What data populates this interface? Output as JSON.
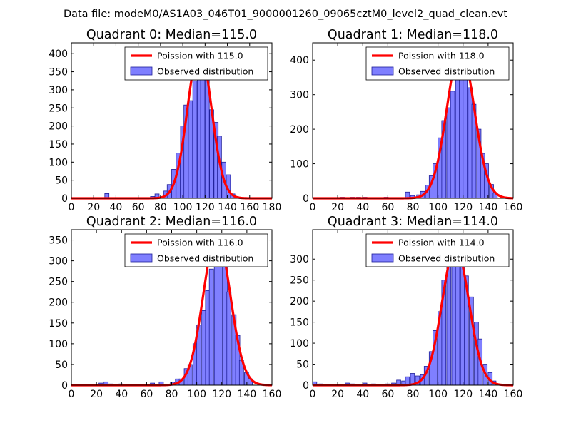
{
  "suptitle": "Data file: modeM0/AS1A03_046T01_9000001260_09065cztM0_level2_quad_clean.evt",
  "colors": {
    "bar_fill": "#7f7fff",
    "bar_edge": "#1f1f99",
    "fit_line": "#ff0000"
  },
  "chart_data": [
    {
      "type": "bar",
      "title": "Quadrant 0: Median=115.0",
      "xlim": [
        0,
        180
      ],
      "ylim": [
        0,
        430
      ],
      "xticks": [
        0,
        20,
        40,
        60,
        80,
        100,
        120,
        140,
        160,
        180
      ],
      "yticks": [
        0,
        50,
        100,
        150,
        200,
        250,
        300,
        350,
        400
      ],
      "legend": [
        "Poission with 115.0",
        "Observed distribution"
      ],
      "bin_width": 3.75,
      "hist": [
        [
          30,
          13
        ],
        [
          71,
          5
        ],
        [
          75,
          12
        ],
        [
          80,
          5
        ],
        [
          83,
          20
        ],
        [
          86,
          38
        ],
        [
          90,
          80
        ],
        [
          94,
          125
        ],
        [
          98,
          200
        ],
        [
          101,
          258
        ],
        [
          105,
          270
        ],
        [
          109,
          325
        ],
        [
          113,
          362
        ],
        [
          116,
          410
        ],
        [
          120,
          340
        ],
        [
          124,
          245
        ],
        [
          128,
          210
        ],
        [
          131,
          172
        ],
        [
          135,
          100
        ],
        [
          139,
          65
        ],
        [
          143,
          12
        ],
        [
          146,
          5
        ]
      ],
      "fit_mu": 115,
      "fit_peak": 413
    },
    {
      "type": "bar",
      "title": "Quadrant 1: Median=118.0",
      "xlim": [
        0,
        160
      ],
      "ylim": [
        0,
        450
      ],
      "xticks": [
        0,
        20,
        40,
        60,
        80,
        100,
        120,
        140,
        160
      ],
      "yticks": [
        0,
        100,
        200,
        300,
        400
      ],
      "legend": [
        "Poission with 118.0",
        "Observed distribution"
      ],
      "bin_width": 3.35,
      "hist": [
        [
          22,
          3
        ],
        [
          30,
          3
        ],
        [
          35,
          3
        ],
        [
          40,
          3
        ],
        [
          57,
          3
        ],
        [
          74,
          18
        ],
        [
          78,
          8
        ],
        [
          83,
          10
        ],
        [
          86,
          20
        ],
        [
          90,
          38
        ],
        [
          93,
          65
        ],
        [
          96,
          100
        ],
        [
          100,
          175
        ],
        [
          103,
          225
        ],
        [
          107,
          262
        ],
        [
          110,
          310
        ],
        [
          114,
          360
        ],
        [
          117,
          410
        ],
        [
          120,
          370
        ],
        [
          124,
          320
        ],
        [
          127,
          272
        ],
        [
          131,
          200
        ],
        [
          134,
          130
        ],
        [
          137,
          100
        ],
        [
          141,
          40
        ],
        [
          144,
          15
        ]
      ],
      "fit_mu": 118,
      "fit_peak": 432
    },
    {
      "type": "bar",
      "title": "Quadrant 2: Median=116.0",
      "xlim": [
        0,
        160
      ],
      "ylim": [
        0,
        375
      ],
      "xticks": [
        0,
        20,
        40,
        60,
        80,
        100,
        120,
        140,
        160
      ],
      "yticks": [
        0,
        50,
        100,
        150,
        200,
        250,
        300,
        350
      ],
      "legend": [
        "Poission with 116.0",
        "Observed distribution"
      ],
      "bin_width": 3.4,
      "hist": [
        [
          22,
          5
        ],
        [
          26,
          8
        ],
        [
          30,
          3
        ],
        [
          38,
          3
        ],
        [
          63,
          5
        ],
        [
          70,
          8
        ],
        [
          79,
          7
        ],
        [
          83,
          15
        ],
        [
          86,
          15
        ],
        [
          90,
          40
        ],
        [
          93,
          50
        ],
        [
          97,
          100
        ],
        [
          100,
          145
        ],
        [
          104,
          180
        ],
        [
          107,
          228
        ],
        [
          110,
          280
        ],
        [
          114,
          310
        ],
        [
          117,
          360
        ],
        [
          121,
          290
        ],
        [
          124,
          225
        ],
        [
          128,
          170
        ],
        [
          131,
          120
        ],
        [
          134,
          60
        ],
        [
          138,
          30
        ],
        [
          141,
          15
        ]
      ],
      "fit_mu": 116,
      "fit_peak": 360
    },
    {
      "type": "bar",
      "title": "Quadrant 3: Median=114.0",
      "xlim": [
        0,
        160
      ],
      "ylim": [
        0,
        370
      ],
      "xticks": [
        0,
        20,
        40,
        60,
        80,
        100,
        120,
        140,
        160
      ],
      "yticks": [
        0,
        50,
        100,
        150,
        200,
        250,
        300
      ],
      "legend": [
        "Poission with 114.0",
        "Observed distribution"
      ],
      "bin_width": 3.3,
      "hist": [
        [
          0,
          8
        ],
        [
          5,
          3
        ],
        [
          26,
          5
        ],
        [
          30,
          3
        ],
        [
          40,
          5
        ],
        [
          47,
          3
        ],
        [
          58,
          3
        ],
        [
          63,
          5
        ],
        [
          67,
          12
        ],
        [
          71,
          10
        ],
        [
          74,
          20
        ],
        [
          78,
          28
        ],
        [
          82,
          22
        ],
        [
          86,
          25
        ],
        [
          89,
          45
        ],
        [
          93,
          80
        ],
        [
          96,
          130
        ],
        [
          100,
          175
        ],
        [
          103,
          250
        ],
        [
          107,
          305
        ],
        [
          111,
          315
        ],
        [
          114,
          325
        ],
        [
          118,
          305
        ],
        [
          121,
          260
        ],
        [
          125,
          210
        ],
        [
          129,
          150
        ],
        [
          132,
          110
        ],
        [
          136,
          50
        ],
        [
          140,
          30
        ],
        [
          143,
          10
        ]
      ],
      "fit_mu": 114,
      "fit_peak": 328
    }
  ]
}
